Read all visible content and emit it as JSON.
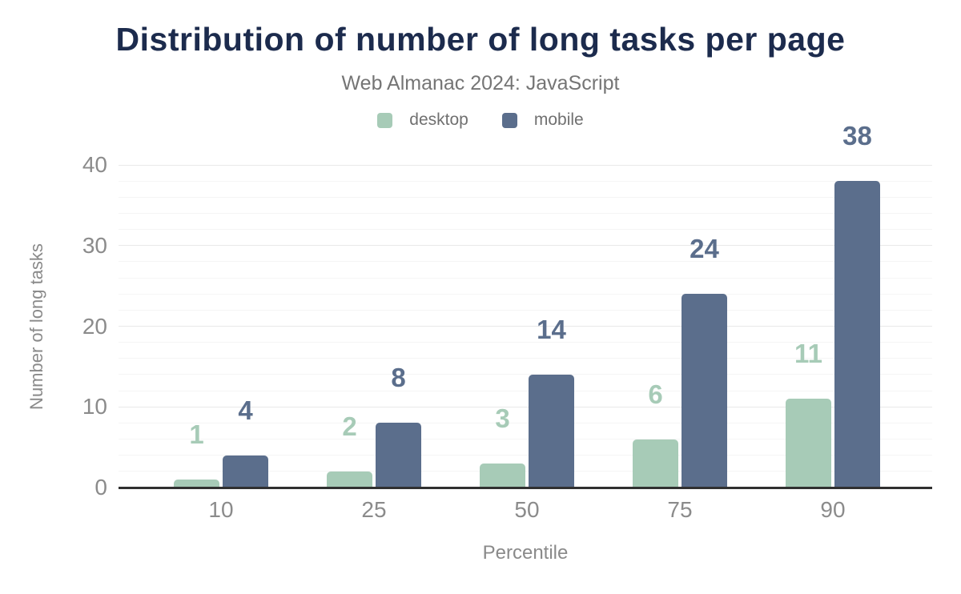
{
  "header": {
    "title": "Distribution of number of long tasks per page",
    "subtitle": "Web Almanac 2024: JavaScript"
  },
  "legend": {
    "items": [
      {
        "label": "desktop",
        "color": "#a7cbb7"
      },
      {
        "label": "mobile",
        "color": "#5b6e8c"
      }
    ]
  },
  "axes": {
    "x": {
      "title": "Percentile",
      "ticks": [
        "10",
        "25",
        "50",
        "75",
        "90"
      ]
    },
    "y": {
      "title": "Number of long tasks",
      "ticks": [
        "0",
        "10",
        "20",
        "30",
        "40"
      ]
    }
  },
  "chart_data": {
    "type": "bar",
    "title": "Distribution of number of long tasks per page",
    "subtitle": "Web Almanac 2024: JavaScript",
    "xlabel": "Percentile",
    "ylabel": "Number of long tasks",
    "categories": [
      "10",
      "25",
      "50",
      "75",
      "90"
    ],
    "series": [
      {
        "name": "desktop",
        "color": "#a7cbb7",
        "values": [
          1,
          2,
          3,
          6,
          11
        ]
      },
      {
        "name": "mobile",
        "color": "#5b6e8c",
        "values": [
          4,
          8,
          14,
          24,
          38
        ]
      }
    ],
    "ylim": [
      0,
      40
    ],
    "y_major_step": 10,
    "y_minor_step": 2,
    "grid": true,
    "legend_position": "top",
    "data_labels": true
  },
  "colors": {
    "title_text": "#1c2b4d",
    "subtitle_text": "#757575",
    "legend_text": "#707070",
    "tick_text": "#8b8b8b",
    "axis_line": "#303030",
    "grid_major": "#e9e9e9",
    "grid_minor": "#f5f5f5",
    "background": "#ffffff"
  }
}
